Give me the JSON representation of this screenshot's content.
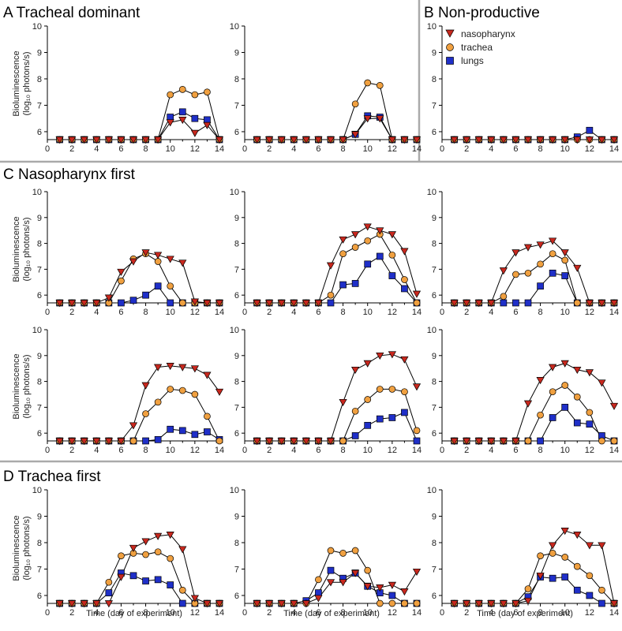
{
  "figure": {
    "sections": [
      {
        "letter": "A",
        "title": "Tracheal dominant"
      },
      {
        "letter": "B",
        "title": "Non-productive"
      },
      {
        "letter": "C",
        "title": "Nasopharynx first"
      },
      {
        "letter": "D",
        "title": "Trachea first"
      }
    ],
    "ylabel_line1": "Bioluminescence",
    "ylabel_line2": "(log₁₀ photons/s)",
    "xlabel": "Time (day of experiment)",
    "legend": [
      "nasopharynx",
      "trachea",
      "lungs"
    ],
    "colors": {
      "nasopharynx": "#c8281e",
      "trachea": "#f0a040",
      "lungs": "#1f2fc8"
    }
  },
  "chart_data": [
    {
      "type": "line",
      "panel": "A1",
      "x": [
        1,
        2,
        3,
        4,
        5,
        6,
        7,
        8,
        9,
        10,
        11,
        12,
        13,
        14
      ],
      "xlim": [
        0,
        14
      ],
      "ylim": [
        5.7,
        10
      ],
      "series": [
        {
          "name": "nasopharynx",
          "values": [
            5.7,
            5.7,
            5.7,
            5.7,
            5.7,
            5.7,
            5.7,
            5.7,
            5.7,
            6.35,
            6.45,
            5.95,
            6.25,
            5.7
          ]
        },
        {
          "name": "trachea",
          "values": [
            5.7,
            5.7,
            5.7,
            5.7,
            5.7,
            5.7,
            5.7,
            5.7,
            5.7,
            7.4,
            7.6,
            7.4,
            7.5,
            5.7
          ]
        },
        {
          "name": "lungs",
          "values": [
            5.7,
            5.7,
            5.7,
            5.7,
            5.7,
            5.7,
            5.7,
            5.7,
            5.7,
            6.55,
            6.75,
            6.5,
            6.45,
            5.7
          ]
        }
      ]
    },
    {
      "type": "line",
      "panel": "A2",
      "x": [
        1,
        2,
        3,
        4,
        5,
        6,
        7,
        8,
        9,
        10,
        11,
        12,
        13,
        14
      ],
      "xlim": [
        0,
        14
      ],
      "ylim": [
        5.7,
        10
      ],
      "series": [
        {
          "name": "nasopharynx",
          "values": [
            5.7,
            5.7,
            5.7,
            5.7,
            5.7,
            5.7,
            5.7,
            5.7,
            5.9,
            6.5,
            6.5,
            5.7,
            5.7,
            5.7
          ]
        },
        {
          "name": "trachea",
          "values": [
            5.7,
            5.7,
            5.7,
            5.7,
            5.7,
            5.7,
            5.7,
            5.7,
            7.05,
            7.85,
            7.75,
            5.7,
            5.7,
            5.7
          ]
        },
        {
          "name": "lungs",
          "values": [
            5.7,
            5.7,
            5.7,
            5.7,
            5.7,
            5.7,
            5.7,
            5.7,
            5.9,
            6.6,
            6.55,
            5.7,
            5.7,
            5.7
          ]
        }
      ]
    },
    {
      "type": "line",
      "panel": "B",
      "x": [
        1,
        2,
        3,
        4,
        5,
        6,
        7,
        8,
        9,
        10,
        11,
        12,
        13,
        14
      ],
      "xlim": [
        0,
        14
      ],
      "ylim": [
        5.7,
        10
      ],
      "series": [
        {
          "name": "nasopharynx",
          "values": [
            5.7,
            5.7,
            5.7,
            5.7,
            5.7,
            5.7,
            5.7,
            5.7,
            5.7,
            5.7,
            5.7,
            5.7,
            5.7,
            5.7
          ]
        },
        {
          "name": "trachea",
          "values": [
            5.7,
            5.7,
            5.7,
            5.7,
            5.7,
            5.7,
            5.7,
            5.7,
            5.7,
            5.7,
            5.7,
            5.7,
            5.7,
            5.7
          ]
        },
        {
          "name": "lungs",
          "values": [
            5.7,
            5.7,
            5.7,
            5.7,
            5.7,
            5.7,
            5.7,
            5.7,
            5.7,
            5.7,
            5.8,
            6.05,
            5.7,
            5.7
          ]
        }
      ]
    },
    {
      "type": "line",
      "panel": "C1",
      "x": [
        1,
        2,
        3,
        4,
        5,
        6,
        7,
        8,
        9,
        10,
        11,
        12,
        13,
        14
      ],
      "xlim": [
        0,
        14
      ],
      "ylim": [
        5.7,
        10
      ],
      "series": [
        {
          "name": "nasopharynx",
          "values": [
            5.7,
            5.7,
            5.7,
            5.7,
            5.9,
            6.9,
            7.3,
            7.65,
            7.55,
            7.4,
            7.25,
            5.75,
            5.7,
            5.7
          ]
        },
        {
          "name": "trachea",
          "values": [
            5.7,
            5.7,
            5.7,
            5.7,
            5.7,
            6.55,
            7.4,
            7.6,
            7.3,
            6.35,
            5.7,
            5.7,
            5.7,
            5.7
          ]
        },
        {
          "name": "lungs",
          "values": [
            5.7,
            5.7,
            5.7,
            5.7,
            5.7,
            5.7,
            5.8,
            6.0,
            6.35,
            5.7,
            5.7,
            5.7,
            5.7,
            5.7
          ]
        }
      ]
    },
    {
      "type": "line",
      "panel": "C2",
      "x": [
        1,
        2,
        3,
        4,
        5,
        6,
        7,
        8,
        9,
        10,
        11,
        12,
        13,
        14
      ],
      "xlim": [
        0,
        14
      ],
      "ylim": [
        5.7,
        10
      ],
      "series": [
        {
          "name": "nasopharynx",
          "values": [
            5.7,
            5.7,
            5.7,
            5.7,
            5.7,
            5.7,
            7.15,
            8.15,
            8.35,
            8.65,
            8.5,
            8.35,
            7.7,
            6.05
          ]
        },
        {
          "name": "trachea",
          "values": [
            5.7,
            5.7,
            5.7,
            5.7,
            5.7,
            5.7,
            6.0,
            7.6,
            7.85,
            8.1,
            8.35,
            7.55,
            6.6,
            5.7
          ]
        },
        {
          "name": "lungs",
          "values": [
            5.7,
            5.7,
            5.7,
            5.7,
            5.7,
            5.7,
            5.7,
            6.4,
            6.45,
            7.2,
            7.5,
            6.75,
            6.25,
            5.7
          ]
        }
      ]
    },
    {
      "type": "line",
      "panel": "C3",
      "x": [
        1,
        2,
        3,
        4,
        5,
        6,
        7,
        8,
        9,
        10,
        11,
        12,
        13,
        14
      ],
      "xlim": [
        0,
        14
      ],
      "ylim": [
        5.7,
        10
      ],
      "series": [
        {
          "name": "nasopharynx",
          "values": [
            5.7,
            5.7,
            5.7,
            5.7,
            6.95,
            7.65,
            7.85,
            7.95,
            8.1,
            7.65,
            7.05,
            5.7,
            5.7,
            5.7
          ]
        },
        {
          "name": "trachea",
          "values": [
            5.7,
            5.7,
            5.7,
            5.7,
            5.95,
            6.8,
            6.85,
            7.2,
            7.6,
            7.35,
            5.7,
            5.7,
            5.7,
            5.7
          ]
        },
        {
          "name": "lungs",
          "values": [
            5.7,
            5.7,
            5.7,
            5.7,
            5.7,
            5.7,
            5.7,
            6.35,
            6.85,
            6.75,
            5.7,
            5.7,
            5.7,
            5.7
          ]
        }
      ]
    },
    {
      "type": "line",
      "panel": "C4",
      "x": [
        1,
        2,
        3,
        4,
        5,
        6,
        7,
        8,
        9,
        10,
        11,
        12,
        13,
        14
      ],
      "xlim": [
        0,
        14
      ],
      "ylim": [
        5.7,
        10
      ],
      "series": [
        {
          "name": "nasopharynx",
          "values": [
            5.7,
            5.7,
            5.7,
            5.7,
            5.7,
            5.7,
            6.3,
            7.85,
            8.55,
            8.6,
            8.55,
            8.5,
            8.25,
            7.6
          ]
        },
        {
          "name": "trachea",
          "values": [
            5.7,
            5.7,
            5.7,
            5.7,
            5.7,
            5.7,
            5.7,
            6.75,
            7.2,
            7.7,
            7.65,
            7.5,
            6.65,
            5.7
          ]
        },
        {
          "name": "lungs",
          "values": [
            5.7,
            5.7,
            5.7,
            5.7,
            5.7,
            5.7,
            5.7,
            5.7,
            5.75,
            6.15,
            6.1,
            5.95,
            6.05,
            5.75
          ]
        }
      ]
    },
    {
      "type": "line",
      "panel": "C5",
      "x": [
        1,
        2,
        3,
        4,
        5,
        6,
        7,
        8,
        9,
        10,
        11,
        12,
        13,
        14
      ],
      "xlim": [
        0,
        14
      ],
      "ylim": [
        5.7,
        10
      ],
      "series": [
        {
          "name": "nasopharynx",
          "values": [
            5.7,
            5.7,
            5.7,
            5.7,
            5.7,
            5.7,
            5.7,
            7.2,
            8.45,
            8.7,
            9.0,
            9.05,
            8.85,
            7.8
          ]
        },
        {
          "name": "trachea",
          "values": [
            5.7,
            5.7,
            5.7,
            5.7,
            5.7,
            5.7,
            5.7,
            5.7,
            6.85,
            7.3,
            7.7,
            7.7,
            7.6,
            6.1
          ]
        },
        {
          "name": "lungs",
          "values": [
            5.7,
            5.7,
            5.7,
            5.7,
            5.7,
            5.7,
            5.7,
            5.7,
            5.9,
            6.3,
            6.55,
            6.6,
            6.8,
            5.7
          ]
        }
      ]
    },
    {
      "type": "line",
      "panel": "C6",
      "x": [
        1,
        2,
        3,
        4,
        5,
        6,
        7,
        8,
        9,
        10,
        11,
        12,
        13,
        14
      ],
      "xlim": [
        0,
        14
      ],
      "ylim": [
        5.7,
        10
      ],
      "series": [
        {
          "name": "nasopharynx",
          "values": [
            5.7,
            5.7,
            5.7,
            5.7,
            5.7,
            5.7,
            7.15,
            8.05,
            8.55,
            8.7,
            8.45,
            8.35,
            7.95,
            7.05
          ]
        },
        {
          "name": "trachea",
          "values": [
            5.7,
            5.7,
            5.7,
            5.7,
            5.7,
            5.7,
            5.7,
            6.7,
            7.6,
            7.85,
            7.4,
            6.8,
            5.7,
            5.7
          ]
        },
        {
          "name": "lungs",
          "values": [
            5.7,
            5.7,
            5.7,
            5.7,
            5.7,
            5.7,
            5.7,
            5.7,
            6.6,
            7.0,
            6.4,
            6.35,
            5.9,
            5.7
          ]
        }
      ]
    },
    {
      "type": "line",
      "panel": "D1",
      "x": [
        1,
        2,
        3,
        4,
        5,
        6,
        7,
        8,
        9,
        10,
        11,
        12,
        13,
        14
      ],
      "xlim": [
        0,
        14
      ],
      "ylim": [
        5.7,
        10
      ],
      "series": [
        {
          "name": "nasopharynx",
          "values": [
            5.7,
            5.7,
            5.7,
            5.7,
            5.7,
            6.7,
            7.8,
            8.05,
            8.25,
            8.3,
            7.75,
            5.9,
            5.7,
            5.7
          ]
        },
        {
          "name": "trachea",
          "values": [
            5.7,
            5.7,
            5.7,
            5.7,
            6.5,
            7.5,
            7.6,
            7.55,
            7.65,
            7.4,
            6.2,
            5.7,
            5.7,
            5.7
          ]
        },
        {
          "name": "lungs",
          "values": [
            5.7,
            5.7,
            5.7,
            5.7,
            6.1,
            6.85,
            6.75,
            6.55,
            6.6,
            6.4,
            5.7,
            5.7,
            5.7,
            5.7
          ]
        }
      ]
    },
    {
      "type": "line",
      "panel": "D2",
      "x": [
        1,
        2,
        3,
        4,
        5,
        6,
        7,
        8,
        9,
        10,
        11,
        12,
        13,
        14
      ],
      "xlim": [
        0,
        14
      ],
      "ylim": [
        5.7,
        10
      ],
      "series": [
        {
          "name": "nasopharynx",
          "values": [
            5.7,
            5.7,
            5.7,
            5.7,
            5.7,
            5.9,
            6.5,
            6.5,
            6.85,
            6.35,
            6.3,
            6.4,
            6.15,
            6.9
          ]
        },
        {
          "name": "trachea",
          "values": [
            5.7,
            5.7,
            5.7,
            5.7,
            5.7,
            6.6,
            7.7,
            7.6,
            7.7,
            6.95,
            5.7,
            5.7,
            5.7,
            5.7
          ]
        },
        {
          "name": "lungs",
          "values": [
            5.7,
            5.7,
            5.7,
            5.7,
            5.8,
            6.1,
            6.95,
            6.65,
            6.85,
            6.35,
            6.1,
            6.0,
            5.7,
            5.7
          ]
        }
      ]
    },
    {
      "type": "line",
      "panel": "D3",
      "x": [
        1,
        2,
        3,
        4,
        5,
        6,
        7,
        8,
        9,
        10,
        11,
        12,
        13,
        14
      ],
      "xlim": [
        0,
        14
      ],
      "ylim": [
        5.7,
        10
      ],
      "series": [
        {
          "name": "nasopharynx",
          "values": [
            5.7,
            5.7,
            5.7,
            5.7,
            5.7,
            5.7,
            5.8,
            6.75,
            7.9,
            8.45,
            8.3,
            7.9,
            7.9,
            5.7
          ]
        },
        {
          "name": "trachea",
          "values": [
            5.7,
            5.7,
            5.7,
            5.7,
            5.7,
            5.7,
            6.25,
            7.5,
            7.6,
            7.45,
            7.1,
            6.75,
            6.2,
            5.7
          ]
        },
        {
          "name": "lungs",
          "values": [
            5.7,
            5.7,
            5.7,
            5.7,
            5.7,
            5.7,
            5.95,
            6.7,
            6.65,
            6.7,
            6.2,
            6.0,
            5.7,
            5.7
          ]
        }
      ]
    }
  ]
}
